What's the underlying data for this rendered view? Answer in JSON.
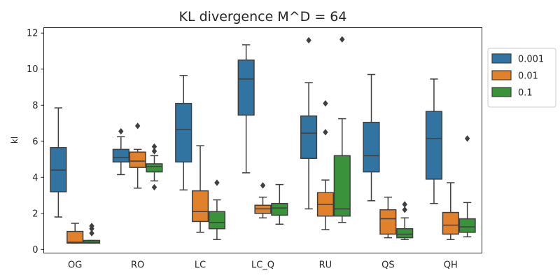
{
  "chart_data": {
    "type": "box",
    "title": "KL divergence M^D = 64",
    "xlabel": "",
    "ylabel": "kl",
    "ylim": [
      -0.2,
      12.3
    ],
    "yticks": [
      0,
      2,
      4,
      6,
      8,
      10,
      12
    ],
    "grid": false,
    "legend_position": "right",
    "categories": [
      "OG",
      "RO",
      "LC",
      "LC_Q",
      "RU",
      "QS",
      "QH"
    ],
    "series": [
      {
        "name": "0.001",
        "color": "#3274a1",
        "boxes": [
          {
            "whisker_low": 1.8,
            "q1": 3.2,
            "median": 4.4,
            "q3": 5.65,
            "whisker_high": 7.85,
            "outliers": []
          },
          {
            "whisker_low": 4.15,
            "q1": 4.85,
            "median": 5.1,
            "q3": 5.55,
            "whisker_high": 6.25,
            "outliers": [
              6.55
            ]
          },
          {
            "whisker_low": 3.3,
            "q1": 4.85,
            "median": 6.65,
            "q3": 8.1,
            "whisker_high": 9.65,
            "outliers": []
          },
          {
            "whisker_low": 4.25,
            "q1": 7.45,
            "median": 9.45,
            "q3": 10.5,
            "whisker_high": 11.35,
            "outliers": []
          },
          {
            "whisker_low": 2.25,
            "q1": 5.05,
            "median": 6.45,
            "q3": 7.4,
            "whisker_high": 9.25,
            "outliers": [
              11.6
            ]
          },
          {
            "whisker_low": 2.7,
            "q1": 4.3,
            "median": 5.2,
            "q3": 7.05,
            "whisker_high": 9.7,
            "outliers": []
          },
          {
            "whisker_low": 2.55,
            "q1": 3.9,
            "median": 6.15,
            "q3": 7.65,
            "whisker_high": 9.45,
            "outliers": []
          }
        ]
      },
      {
        "name": "0.01",
        "color": "#e1812c",
        "boxes": [
          {
            "whisker_low": 0.35,
            "q1": 0.35,
            "median": 0.4,
            "q3": 1.0,
            "whisker_high": 1.45,
            "outliers": []
          },
          {
            "whisker_low": 3.4,
            "q1": 4.55,
            "median": 4.9,
            "q3": 5.4,
            "whisker_high": 5.55,
            "outliers": [
              6.85
            ]
          },
          {
            "whisker_low": 0.95,
            "q1": 1.55,
            "median": 2.1,
            "q3": 3.25,
            "whisker_high": 5.75,
            "outliers": []
          },
          {
            "whisker_low": 1.75,
            "q1": 2.0,
            "median": 2.25,
            "q3": 2.45,
            "whisker_high": 2.9,
            "outliers": [
              3.55
            ]
          },
          {
            "whisker_low": 1.1,
            "q1": 1.85,
            "median": 2.5,
            "q3": 3.15,
            "whisker_high": 3.85,
            "outliers": [
              6.5,
              8.1
            ]
          },
          {
            "whisker_low": 0.65,
            "q1": 0.85,
            "median": 1.7,
            "q3": 2.2,
            "whisker_high": 2.9,
            "outliers": []
          },
          {
            "whisker_low": 0.55,
            "q1": 0.85,
            "median": 1.35,
            "q3": 2.05,
            "whisker_high": 3.7,
            "outliers": []
          }
        ]
      },
      {
        "name": "0.1",
        "color": "#3a923a",
        "boxes": [
          {
            "whisker_low": 0.35,
            "q1": 0.35,
            "median": 0.4,
            "q3": 0.5,
            "whisker_high": 0.5,
            "outliers": [
              0.9,
              1.15,
              1.3
            ]
          },
          {
            "whisker_low": 3.8,
            "q1": 4.3,
            "median": 4.6,
            "q3": 4.75,
            "whisker_high": 5.2,
            "outliers": [
              3.45,
              5.45,
              5.7
            ]
          },
          {
            "whisker_low": 0.55,
            "q1": 1.15,
            "median": 1.5,
            "q3": 2.1,
            "whisker_high": 2.75,
            "outliers": [
              3.7
            ]
          },
          {
            "whisker_low": 1.4,
            "q1": 1.9,
            "median": 2.3,
            "q3": 2.55,
            "whisker_high": 3.6,
            "outliers": []
          },
          {
            "whisker_low": 1.5,
            "q1": 1.85,
            "median": 2.25,
            "q3": 5.2,
            "whisker_high": 7.25,
            "outliers": [
              11.65
            ]
          },
          {
            "whisker_low": 0.55,
            "q1": 0.65,
            "median": 0.85,
            "q3": 1.15,
            "whisker_high": 1.75,
            "outliers": [
              2.2,
              2.5
            ]
          },
          {
            "whisker_low": 0.7,
            "q1": 0.95,
            "median": 1.25,
            "q3": 1.7,
            "whisker_high": 2.6,
            "outliers": [
              6.15
            ]
          }
        ]
      }
    ]
  }
}
